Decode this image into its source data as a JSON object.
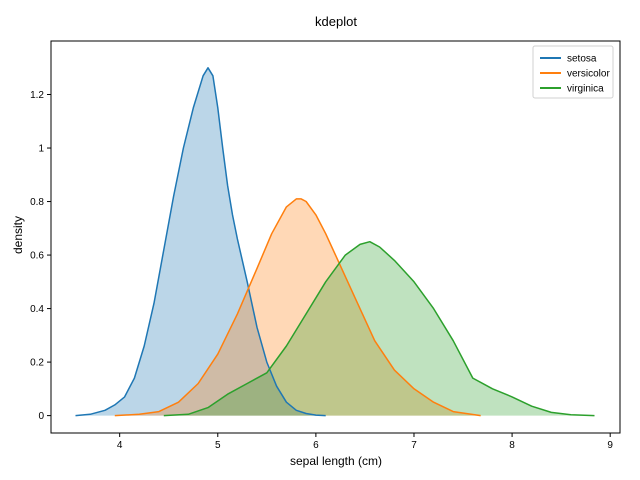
{
  "chart_data": {
    "type": "area",
    "title": "kdeplot",
    "xlabel": "sepal length (cm)",
    "ylabel": "density",
    "xlim": [
      3.3,
      9.1
    ],
    "ylim": [
      -0.065,
      1.4
    ],
    "xticks": [
      4,
      5,
      6,
      7,
      8,
      9
    ],
    "yticks": [
      0,
      0.2,
      0.4,
      0.6,
      0.8,
      1.0,
      1.2
    ],
    "xtick_labels": [
      "4",
      "5",
      "6",
      "7",
      "8",
      "9"
    ],
    "ytick_labels": [
      "0",
      "0.2",
      "0.4",
      "0.6",
      "0.8",
      "1",
      "1.2"
    ],
    "grid": false,
    "legend_position": "top-right",
    "series": [
      {
        "name": "setosa",
        "color": "#1f77b4",
        "fill_color": "#a6c8e4",
        "x": [
          3.55,
          3.7,
          3.85,
          3.95,
          4.05,
          4.15,
          4.25,
          4.35,
          4.45,
          4.55,
          4.65,
          4.75,
          4.85,
          4.9,
          4.95,
          5.0,
          5.05,
          5.1,
          5.15,
          5.2,
          5.3,
          5.4,
          5.5,
          5.6,
          5.7,
          5.8,
          5.9,
          6.0,
          6.1
        ],
        "y": [
          0.0,
          0.005,
          0.02,
          0.04,
          0.07,
          0.14,
          0.26,
          0.42,
          0.62,
          0.82,
          1.0,
          1.15,
          1.27,
          1.3,
          1.27,
          1.15,
          1.0,
          0.86,
          0.75,
          0.66,
          0.5,
          0.33,
          0.2,
          0.11,
          0.05,
          0.02,
          0.008,
          0.002,
          0.0
        ]
      },
      {
        "name": "versicolor",
        "color": "#ff7f0e",
        "fill_color": "#fcc9a2",
        "x": [
          3.95,
          4.2,
          4.4,
          4.6,
          4.8,
          5.0,
          5.2,
          5.4,
          5.55,
          5.7,
          5.8,
          5.85,
          5.9,
          6.0,
          6.1,
          6.2,
          6.4,
          6.6,
          6.8,
          7.0,
          7.2,
          7.4,
          7.68
        ],
        "y": [
          0.0,
          0.005,
          0.015,
          0.05,
          0.12,
          0.23,
          0.38,
          0.55,
          0.68,
          0.78,
          0.81,
          0.81,
          0.8,
          0.75,
          0.68,
          0.6,
          0.44,
          0.28,
          0.17,
          0.1,
          0.05,
          0.015,
          0.0
        ]
      },
      {
        "name": "virginica",
        "color": "#2ca02c",
        "fill_color": "#b9e2b4",
        "x": [
          4.45,
          4.7,
          4.9,
          5.1,
          5.3,
          5.5,
          5.7,
          5.9,
          6.1,
          6.3,
          6.45,
          6.55,
          6.65,
          6.8,
          7.0,
          7.2,
          7.4,
          7.6,
          7.8,
          8.0,
          8.2,
          8.4,
          8.6,
          8.84
        ],
        "y": [
          0.0,
          0.005,
          0.03,
          0.08,
          0.12,
          0.16,
          0.26,
          0.38,
          0.5,
          0.6,
          0.64,
          0.65,
          0.63,
          0.58,
          0.5,
          0.4,
          0.28,
          0.14,
          0.1,
          0.07,
          0.035,
          0.012,
          0.003,
          0.0
        ]
      }
    ]
  }
}
